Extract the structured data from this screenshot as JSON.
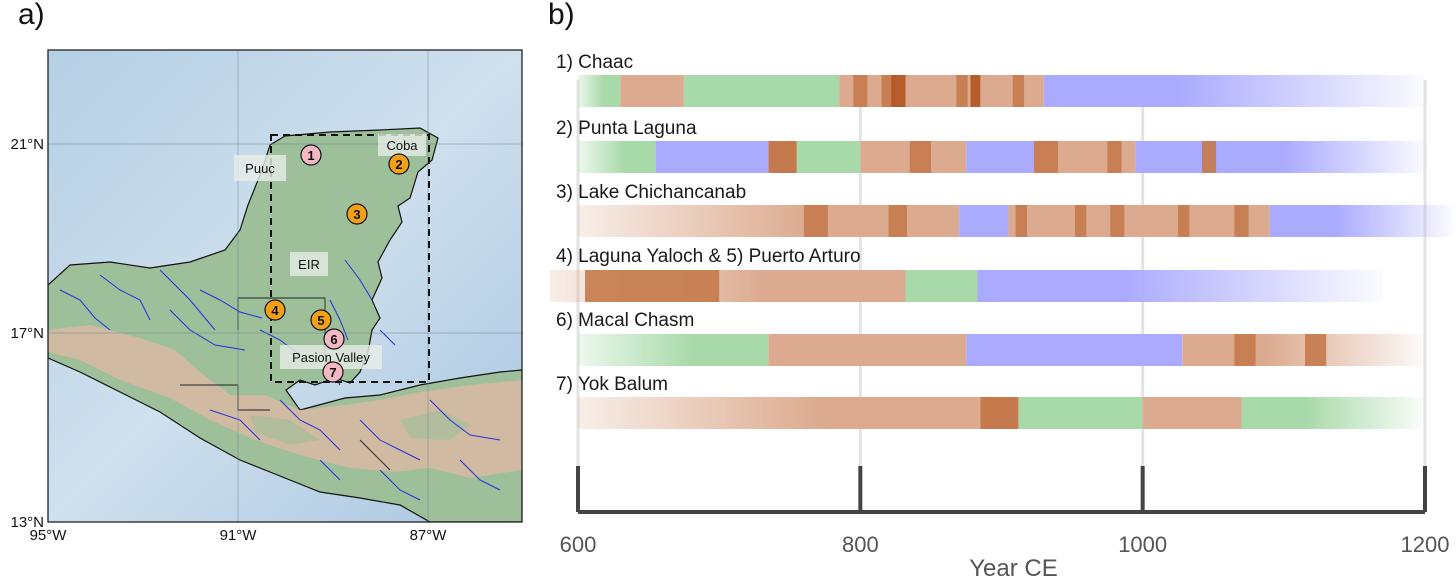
{
  "panels": {
    "a": "a)",
    "b": "b)"
  },
  "map": {
    "lat_labels": [
      "21°N",
      "17°N",
      "13°N"
    ],
    "lon_labels": [
      "95°W",
      "91°W",
      "87°W"
    ],
    "regions": [
      "Puuc",
      "Coba",
      "EIR",
      "Pasion Valley"
    ],
    "sites": [
      {
        "num": "1",
        "type": "pink"
      },
      {
        "num": "2",
        "type": "orange"
      },
      {
        "num": "3",
        "type": "orange"
      },
      {
        "num": "4",
        "type": "orange"
      },
      {
        "num": "5",
        "type": "orange"
      },
      {
        "num": "6",
        "type": "pink"
      },
      {
        "num": "7",
        "type": "pink"
      }
    ],
    "colors": {
      "sea": "#b9d3e6",
      "land": "#9dbf9a",
      "highland": "#d9b8a3",
      "river": "#2233dd",
      "pink": "#f4b8c4",
      "orange": "#f2a116"
    }
  },
  "timeline": {
    "x_range": [
      600,
      1200
    ],
    "ticks": [
      "600",
      "800",
      "1000",
      "1200"
    ],
    "tick_values": [
      600,
      800,
      1000,
      1200
    ],
    "xlabel": "Year CE",
    "colors": {
      "dry": "#dcab8f",
      "drier": "#c47a4c",
      "driest": "#b25420",
      "wet": "#a8daa9",
      "wettest": "#aaaaff"
    },
    "sites": [
      {
        "label": "1) Chaac",
        "segments": [
          [
            600,
            630,
            "wet"
          ],
          [
            630,
            675,
            "dry"
          ],
          [
            675,
            785,
            "wet"
          ],
          [
            785,
            930,
            "dry"
          ],
          [
            930,
            1200,
            "wettest"
          ]
        ],
        "marks": [
          [
            795,
            805,
            "drier"
          ],
          [
            815,
            825,
            "drier"
          ],
          [
            822,
            832,
            "driest"
          ],
          [
            868,
            876,
            "drier"
          ],
          [
            878,
            885,
            "driest"
          ],
          [
            908,
            916,
            "drier"
          ]
        ]
      },
      {
        "label": "2) Punta Laguna",
        "segments": [
          [
            600,
            655,
            "wet"
          ],
          [
            655,
            735,
            "wettest"
          ],
          [
            735,
            755,
            "drier"
          ],
          [
            755,
            800,
            "wet"
          ],
          [
            800,
            875,
            "dry"
          ],
          [
            875,
            923,
            "wettest"
          ],
          [
            923,
            995,
            "dry"
          ],
          [
            995,
            1045,
            "wettest"
          ],
          [
            1045,
            1200,
            "wettest"
          ]
        ],
        "marks": [
          [
            835,
            850,
            "drier"
          ],
          [
            923,
            940,
            "drier"
          ],
          [
            975,
            985,
            "drier"
          ],
          [
            1042,
            1052,
            "drier"
          ]
        ]
      },
      {
        "label": "3) Lake  Chichancanab",
        "segments": [
          [
            600,
            870,
            "dry"
          ],
          [
            870,
            905,
            "wettest"
          ],
          [
            905,
            1090,
            "dry"
          ],
          [
            1090,
            1220,
            "wettest"
          ]
        ],
        "marks": [
          [
            760,
            777,
            "drier"
          ],
          [
            820,
            833,
            "drier"
          ],
          [
            910,
            918,
            "drier"
          ],
          [
            952,
            960,
            "drier"
          ],
          [
            977,
            987,
            "drier"
          ],
          [
            1025,
            1033,
            "drier"
          ],
          [
            1065,
            1075,
            "drier"
          ]
        ]
      },
      {
        "label": "4) Laguna Yaloch & 5) Puerto Arturo",
        "segments": [
          [
            580,
            832,
            "dry"
          ],
          [
            832,
            883,
            "wet"
          ],
          [
            883,
            1170,
            "wettest"
          ]
        ],
        "marks": [
          [
            605,
            700,
            "drier"
          ]
        ]
      },
      {
        "label": "6) Macal Chasm",
        "segments": [
          [
            600,
            735,
            "wet"
          ],
          [
            735,
            875,
            "dry"
          ],
          [
            875,
            1028,
            "wettest"
          ],
          [
            1028,
            1200,
            "dry"
          ]
        ],
        "marks": [
          [
            1065,
            1080,
            "drier"
          ],
          [
            1115,
            1130,
            "drier"
          ]
        ]
      },
      {
        "label": "7) Yok Balum",
        "segments": [
          [
            600,
            885,
            "dry"
          ],
          [
            885,
            912,
            "drier"
          ],
          [
            912,
            1000,
            "wet"
          ],
          [
            1000,
            1070,
            "dry"
          ],
          [
            1070,
            1200,
            "wet"
          ]
        ],
        "marks": []
      }
    ]
  }
}
